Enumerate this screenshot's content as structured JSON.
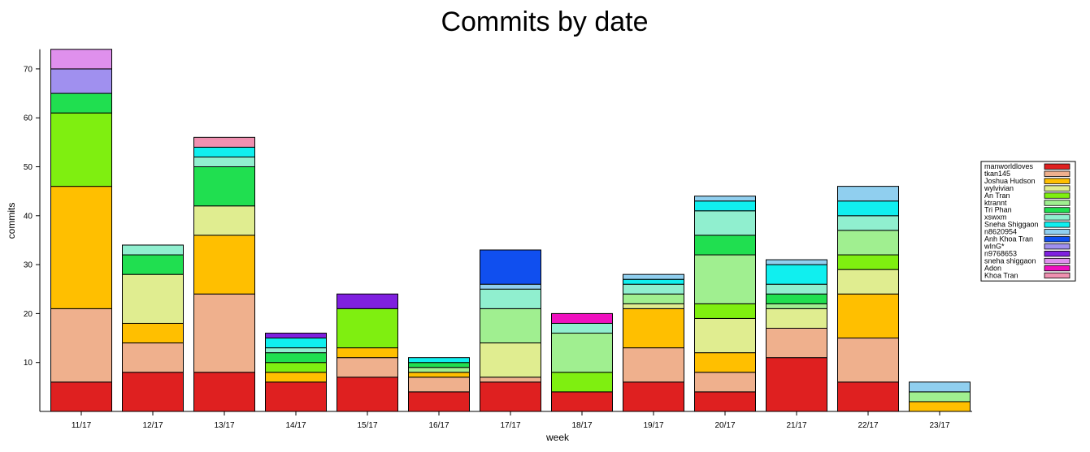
{
  "chart_data": {
    "type": "bar",
    "stacked": true,
    "title": "Commits by date",
    "xlabel": "week",
    "ylabel": "commits",
    "ylim": [
      0,
      74
    ],
    "yticks": [
      10,
      20,
      30,
      40,
      50,
      60,
      70
    ],
    "grid": false,
    "legend_position": "right",
    "categories": [
      "11/17",
      "12/17",
      "13/17",
      "14/17",
      "15/17",
      "16/17",
      "17/17",
      "18/17",
      "19/17",
      "20/17",
      "21/17",
      "22/17",
      "23/17"
    ],
    "series": [
      {
        "name": "manworldloves",
        "color": "#df2020",
        "values": [
          6,
          8,
          8,
          6,
          7,
          4,
          6,
          4,
          6,
          4,
          11,
          6,
          0
        ]
      },
      {
        "name": "tkan145",
        "color": "#efb08d",
        "values": [
          15,
          6,
          16,
          0,
          4,
          3,
          1,
          0,
          7,
          4,
          6,
          9,
          0
        ]
      },
      {
        "name": "Joshua Hudson",
        "color": "#ffbf00",
        "values": [
          25,
          4,
          12,
          2,
          2,
          1,
          0,
          0,
          8,
          4,
          0,
          9,
          2
        ]
      },
      {
        "name": "wylvivian",
        "color": "#e0ed90",
        "values": [
          0,
          10,
          6,
          0,
          0,
          0,
          7,
          0,
          1,
          7,
          4,
          5,
          0
        ]
      },
      {
        "name": "An Tran",
        "color": "#7fef10",
        "values": [
          15,
          0,
          0,
          2,
          8,
          0,
          0,
          4,
          0,
          3,
          0,
          3,
          0
        ]
      },
      {
        "name": "ktrannt",
        "color": "#a0ef90",
        "values": [
          0,
          0,
          0,
          0,
          0,
          1,
          7,
          8,
          2,
          10,
          1,
          5,
          2
        ]
      },
      {
        "name": "Tri Phan",
        "color": "#20df50",
        "values": [
          4,
          4,
          8,
          2,
          0,
          1,
          0,
          0,
          0,
          4,
          2,
          0,
          0
        ]
      },
      {
        "name": "xswxm",
        "color": "#90efcf",
        "values": [
          0,
          2,
          2,
          1,
          0,
          0,
          4,
          2,
          2,
          5,
          2,
          3,
          0
        ]
      },
      {
        "name": "Sneha Shiggaon",
        "color": "#10efef",
        "values": [
          0,
          0,
          2,
          2,
          0,
          1,
          0,
          0,
          1,
          2,
          4,
          3,
          0
        ]
      },
      {
        "name": "n8620954",
        "color": "#90cfef",
        "values": [
          0,
          0,
          0,
          0,
          0,
          0,
          1,
          0,
          1,
          1,
          1,
          3,
          2
        ]
      },
      {
        "name": "Anh Khoa Tran",
        "color": "#104fef",
        "values": [
          0,
          0,
          0,
          0,
          0,
          0,
          7,
          0,
          0,
          0,
          0,
          0,
          0
        ]
      },
      {
        "name": "wInG*",
        "color": "#a090ef",
        "values": [
          5,
          0,
          0,
          0,
          0,
          0,
          0,
          0,
          0,
          0,
          0,
          0,
          0
        ]
      },
      {
        "name": "n9768653",
        "color": "#7f20df",
        "values": [
          0,
          0,
          0,
          1,
          3,
          0,
          0,
          0,
          0,
          0,
          0,
          0,
          0
        ]
      },
      {
        "name": "sneha shiggaon",
        "color": "#df90ed",
        "values": [
          4,
          0,
          0,
          0,
          0,
          0,
          0,
          0,
          0,
          0,
          0,
          0,
          0
        ]
      },
      {
        "name": "Adon",
        "color": "#ef10bf",
        "values": [
          0,
          0,
          0,
          0,
          0,
          0,
          0,
          2,
          0,
          0,
          0,
          0,
          0
        ]
      },
      {
        "name": "Khoa Tran",
        "color": "#ef90b0",
        "values": [
          0,
          0,
          2,
          0,
          0,
          0,
          0,
          0,
          0,
          0,
          0,
          0,
          0
        ]
      }
    ]
  }
}
